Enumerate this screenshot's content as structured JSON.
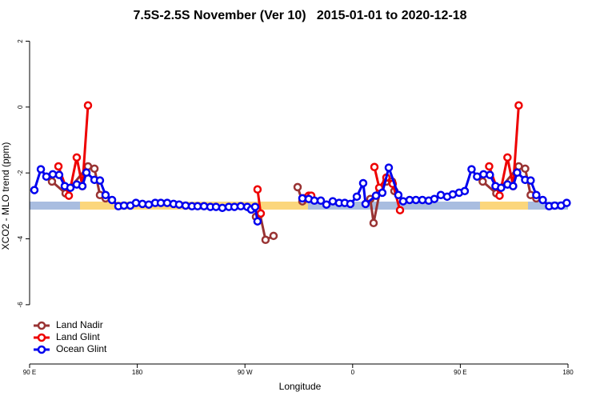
{
  "chart_data": {
    "type": "line",
    "title": "7.5S-2.5S November (Ver 10)   2015-01-01 to 2020-12-18",
    "x_label": "Longitude",
    "y_label": "XCO2 - MLO trend (ppm)",
    "xlim": [
      90,
      540
    ],
    "ylim": [
      -7.8,
      2.4
    ],
    "xticks": [
      {
        "value": 90,
        "label": "90 E"
      },
      180,
      {
        "value": 270,
        "label": "90 W"
      },
      {
        "value": 360,
        "label": "0"
      },
      {
        "value": 450,
        "label": "90 E"
      },
      {
        "value": 540,
        "label": "180"
      }
    ],
    "yticks": [
      2,
      0,
      -2,
      -4,
      -6
    ],
    "legend": "bottom-left",
    "series": [
      {
        "name": "Land Nadir",
        "color": "#993333",
        "x": [
          108.7,
          120.1,
          138.8,
          144.2,
          148.8,
          153.5,
          null,
          279.2,
          282.6,
          287.2,
          293.9,
          null,
          314.0,
          318.0,
          null,
          374.8,
          377.5,
          382.8,
          388.2,
          392.9,
          394.9,
          null,
          468.7,
          480.1,
          498.8,
          504.2,
          508.8,
          513.5
        ],
        "values": [
          -2.26,
          -2.62,
          -1.8,
          -1.87,
          -2.67,
          -2.77,
          null,
          -3.33,
          -3.25,
          -4.03,
          -3.91,
          null,
          -2.43,
          -2.86,
          null,
          -2.79,
          -3.52,
          -2.55,
          -2.26,
          -2.26,
          -2.55,
          null,
          -2.26,
          -2.62,
          -1.8,
          -1.87,
          -2.67,
          -2.77
        ]
      },
      {
        "name": "Land Glint",
        "color": "#ee0000",
        "x": [
          114.1,
          122.8,
          129.4,
          134.1,
          138.8,
          null,
          280.5,
          283.2,
          null,
          319.3,
          323.3,
          325.4,
          null,
          378.2,
          382.2,
          388.2,
          393.5,
          399.6,
          null,
          474.1,
          482.8,
          489.4,
          494.1,
          498.8
        ],
        "values": [
          -1.8,
          -2.69,
          -1.53,
          -2.4,
          0.05,
          null,
          -2.5,
          -3.23,
          null,
          -2.77,
          -2.69,
          -2.69,
          null,
          -1.82,
          -2.45,
          -2.14,
          -2.33,
          -3.13,
          null,
          -1.8,
          -2.69,
          -1.53,
          -2.4,
          0.05
        ]
      },
      {
        "name": "Ocean Glint",
        "color": "#0000ee",
        "x": [
          94.0,
          99.4,
          104.0,
          109.4,
          114.7,
          119.4,
          124.1,
          129.4,
          134.1,
          137.5,
          144.2,
          148.8,
          153.5,
          158.9,
          164.2,
          168.9,
          174.2,
          178.9,
          184.3,
          189.6,
          195.0,
          199.7,
          205.0,
          210.3,
          215.0,
          220.4,
          225.7,
          230.4,
          235.8,
          241.1,
          245.8,
          251.1,
          256.5,
          261.2,
          266.5,
          271.9,
          275.2,
          278.5,
          280.5,
          null,
          318.0,
          323.3,
          328.0,
          333.4,
          338.1,
          343.4,
          348.7,
          353.4,
          358.1,
          363.5,
          368.8,
          370.8,
          379.5,
          384.8,
          390.2,
          398.2,
          402.2,
          407.6,
          412.9,
          418.3,
          423.6,
          428.3,
          433.7,
          439.0,
          443.7,
          449.0,
          453.7,
          459.4,
          464.0,
          469.4,
          474.7,
          479.4,
          484.1,
          489.4,
          494.1,
          497.5,
          504.2,
          508.8,
          513.5,
          518.9,
          524.2,
          528.9,
          534.2,
          538.9
        ],
        "values": [
          -2.52,
          -1.89,
          -2.11,
          -2.04,
          -2.06,
          -2.4,
          -2.45,
          -2.35,
          -2.4,
          -1.99,
          -2.21,
          -2.23,
          -2.67,
          -2.82,
          -3.01,
          -2.99,
          -2.99,
          -2.91,
          -2.94,
          -2.96,
          -2.91,
          -2.91,
          -2.91,
          -2.94,
          -2.96,
          -2.99,
          -3.01,
          -3.01,
          -3.01,
          -3.03,
          -3.03,
          -3.06,
          -3.03,
          -3.03,
          -3.01,
          -3.03,
          -3.11,
          -3.03,
          -3.47,
          null,
          -2.77,
          -2.79,
          -2.84,
          -2.84,
          -2.96,
          -2.86,
          -2.91,
          -2.91,
          -2.94,
          -2.72,
          -2.31,
          -2.94,
          -2.69,
          -2.6,
          -1.84,
          -2.67,
          -2.86,
          -2.82,
          -2.82,
          -2.82,
          -2.84,
          -2.79,
          -2.67,
          -2.72,
          -2.65,
          -2.6,
          -2.55,
          -1.89,
          -2.11,
          -2.04,
          -2.06,
          -2.4,
          -2.45,
          -2.35,
          -2.4,
          -1.99,
          -2.21,
          -2.23,
          -2.67,
          -2.82,
          -3.01,
          -2.99,
          -2.99,
          -2.91
        ]
      }
    ]
  }
}
